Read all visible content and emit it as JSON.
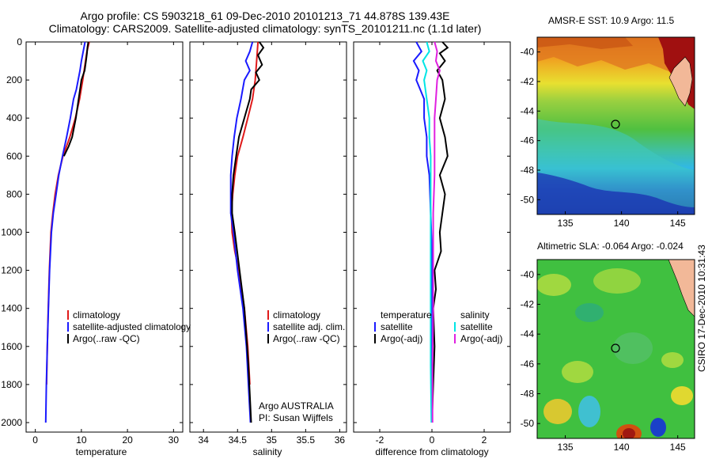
{
  "header": {
    "line1": "Argo profile: CS 5903218_61 09-Dec-2010 20101213_71 44.878S 139.43E",
    "line2": "Climatology: CARS2009. Satellite-adjusted climatology: synTS_20101211.nc (1.1d later)"
  },
  "colors": {
    "climatology": "#e01a1a",
    "satellite": "#1a1aff",
    "argo": "#000000",
    "salinity_sat": "#00e5e5",
    "salinity_argo": "#e020e0"
  },
  "chart_data": [
    {
      "type": "line",
      "xlabel": "temperature",
      "ylabel": "",
      "xlim": [
        -2,
        32
      ],
      "ylim": [
        0,
        2050
      ],
      "xticks": [
        0,
        10,
        20,
        30
      ],
      "yticks": [
        0,
        200,
        400,
        600,
        800,
        1000,
        1200,
        1400,
        1600,
        1800,
        2000
      ],
      "series": [
        {
          "name": "climatology",
          "color": "#e01a1a",
          "x": [
            11.7,
            11.2,
            10.9,
            10.3,
            9.6,
            8.7,
            7.5,
            6.0,
            5.0,
            4.3,
            3.8,
            3.4,
            3.05,
            2.8,
            2.6,
            2.45
          ],
          "y": [
            0,
            50,
            100,
            200,
            300,
            400,
            500,
            600,
            700,
            800,
            900,
            1000,
            1200,
            1400,
            1600,
            1800
          ]
        },
        {
          "name": "satellite-adjusted climatology",
          "color": "#1a1aff",
          "x": [
            10.8,
            10.4,
            10.0,
            9.7,
            9.3,
            8.9,
            8.3,
            7.6,
            6.8,
            5.9,
            5.1,
            4.5,
            3.9,
            3.5,
            3.1,
            2.85,
            2.6,
            2.4,
            2.25
          ],
          "y": [
            0,
            50,
            100,
            150,
            200,
            250,
            300,
            400,
            500,
            600,
            700,
            800,
            900,
            1000,
            1200,
            1400,
            1600,
            1800,
            2000
          ]
        },
        {
          "name": "Argo(..raw -QC)",
          "color": "#000000",
          "x": [
            11.5,
            11.3,
            11.2,
            11.0,
            10.7,
            10.0,
            9.4,
            8.8,
            8.0,
            7.2,
            6.2
          ],
          "y": [
            0,
            30,
            60,
            100,
            150,
            200,
            300,
            400,
            500,
            550,
            600
          ]
        }
      ]
    },
    {
      "type": "line",
      "xlabel": "salinity",
      "ylabel": "",
      "xlim": [
        33.8,
        36.1
      ],
      "ylim": [
        0,
        2050
      ],
      "xticks": [
        34,
        34.5,
        35,
        35.5,
        36
      ],
      "yticks": [
        0,
        200,
        400,
        600,
        800,
        1000,
        1200,
        1400,
        1600,
        1800,
        2000
      ],
      "series": [
        {
          "name": "climatology",
          "color": "#e01a1a",
          "x": [
            34.8,
            34.78,
            34.76,
            34.72,
            34.65,
            34.58,
            34.5,
            34.46,
            34.43,
            34.41,
            34.42,
            34.46,
            34.52,
            34.6,
            34.65,
            34.68
          ],
          "y": [
            0,
            100,
            200,
            300,
            400,
            500,
            600,
            700,
            800,
            900,
            1000,
            1100,
            1200,
            1400,
            1600,
            1800
          ]
        },
        {
          "name": "satellite adj. clim.",
          "color": "#1a1aff",
          "x": [
            34.72,
            34.68,
            34.62,
            34.68,
            34.6,
            34.55,
            34.49,
            34.45,
            34.42,
            34.4,
            34.4,
            34.44,
            34.5,
            34.58,
            34.63,
            34.66,
            34.69
          ],
          "y": [
            0,
            50,
            100,
            150,
            200,
            300,
            400,
            500,
            600,
            700,
            900,
            1000,
            1200,
            1400,
            1600,
            1800,
            2000
          ]
        },
        {
          "name": "Argo(..raw -QC)",
          "color": "#000000",
          "x": [
            34.82,
            34.88,
            34.8,
            34.86,
            34.77,
            34.82,
            34.7,
            34.68,
            34.6,
            34.52,
            34.48,
            34.44,
            34.42,
            34.42,
            34.46,
            34.53,
            34.6,
            34.66,
            34.7
          ],
          "y": [
            0,
            30,
            70,
            120,
            160,
            200,
            250,
            300,
            400,
            500,
            600,
            700,
            800,
            900,
            1000,
            1200,
            1400,
            1700,
            2000
          ]
        }
      ]
    },
    {
      "type": "line",
      "xlabel": "difference from climatology",
      "ylabel": "",
      "xlim": [
        -3,
        3
      ],
      "ylim": [
        0,
        2050
      ],
      "xticks": [
        -2,
        0,
        2
      ],
      "yticks": [
        0,
        200,
        400,
        600,
        800,
        1000,
        1200,
        1400,
        1600,
        1800,
        2000
      ],
      "legend_headers": [
        "temperature",
        "salinity"
      ],
      "series": [
        {
          "name": "satellite",
          "group": "temperature",
          "color": "#1a1aff",
          "x": [
            -0.6,
            -0.4,
            -0.7,
            -0.5,
            -0.6,
            -0.3,
            -0.3,
            -0.2,
            -0.2,
            -0.1,
            -0.05,
            0.0,
            0.0,
            0.0,
            0.0,
            0.0
          ],
          "y": [
            0,
            50,
            100,
            150,
            200,
            300,
            400,
            500,
            600,
            700,
            900,
            1100,
            1300,
            1500,
            1800,
            2000
          ]
        },
        {
          "name": "Argo(-adj)",
          "group": "temperature",
          "color": "#000000",
          "x": [
            0.4,
            0.6,
            0.3,
            0.5,
            0.2,
            0.4,
            0.5,
            0.3,
            0.5,
            0.6,
            0.3,
            0.5,
            0.4,
            0.3,
            0.35,
            0.1,
            0.15,
            0.05,
            0.1,
            0.05,
            0.0
          ],
          "y": [
            0,
            30,
            60,
            100,
            150,
            200,
            300,
            400,
            500,
            600,
            700,
            800,
            900,
            1000,
            1100,
            1200,
            1300,
            1400,
            1600,
            1800,
            2000
          ]
        },
        {
          "name": "satellite",
          "group": "salinity",
          "color": "#00e5e5",
          "x": [
            -0.2,
            -0.1,
            -0.35,
            -0.2,
            -0.3,
            -0.2,
            -0.1,
            -0.1,
            -0.05,
            -0.05,
            -0.05,
            -0.05,
            -0.05,
            -0.05,
            -0.02
          ],
          "y": [
            0,
            50,
            100,
            150,
            200,
            300,
            400,
            500,
            600,
            800,
            1000,
            1200,
            1400,
            1700,
            2000
          ]
        },
        {
          "name": "Argo(-adj)",
          "group": "salinity",
          "color": "#e020e0",
          "x": [
            0.1,
            0.2,
            0.15,
            0.3,
            0.2,
            0.15,
            0.1,
            0.1,
            0.1,
            0.05,
            0.05,
            0.05,
            0.02,
            0.02
          ],
          "y": [
            0,
            50,
            100,
            150,
            200,
            300,
            400,
            500,
            700,
            900,
            1100,
            1400,
            1700,
            2000
          ]
        }
      ]
    },
    {
      "type": "heatmap",
      "title": "AMSR-E SST: 10.9 Argo: 11.5",
      "xlim": [
        132.5,
        146.5
      ],
      "ylim": [
        -51,
        -39
      ],
      "xticks": [
        135,
        140,
        145
      ],
      "yticks": [
        -40,
        -42,
        -44,
        -46,
        -48,
        -50
      ],
      "marker": {
        "lon": 139.43,
        "lat": -44.878
      },
      "grid": false
    },
    {
      "type": "heatmap",
      "title": "Altimetric SLA: -0.064 Argo: -0.024",
      "xlim": [
        132.5,
        146.5
      ],
      "ylim": [
        -51,
        -39
      ],
      "xticks": [
        135,
        140,
        145
      ],
      "yticks": [
        -40,
        -42,
        -44,
        -46,
        -48,
        -50
      ],
      "marker": {
        "lon": 139.43,
        "lat": -44.878
      },
      "grid": false
    }
  ],
  "legends": {
    "temp": [
      "climatology",
      "satellite-adjusted climatology",
      "Argo(..raw -QC)"
    ],
    "sal": [
      "climatology",
      "satellite adj. clim.",
      "Argo(..raw -QC)"
    ],
    "diff_headers": [
      "temperature",
      "salinity"
    ],
    "diff_left": [
      "satellite",
      "Argo(-adj)"
    ],
    "diff_right": [
      "satellite",
      "Argo(-adj)"
    ]
  },
  "credit": {
    "line1": "Argo AUSTRALIA",
    "line2": "PI: Susan Wijffels"
  },
  "stamp": "CSIRO 17-Dec-2010 10:31:43"
}
